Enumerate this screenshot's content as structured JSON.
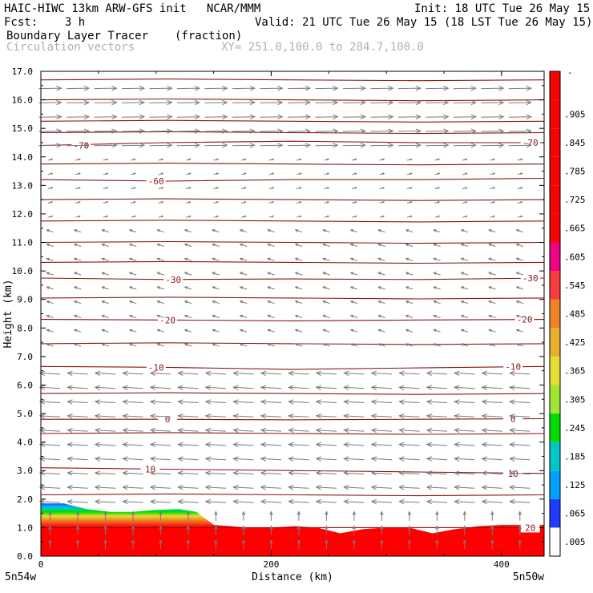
{
  "header": {
    "line1_left": "HAIC-HIWC 13km ARW-GFS init   NCAR/MMM",
    "line1_right": "Init: 18 UTC Tue 26 May 15",
    "line2_left": "Fcst:    3 h",
    "line2_right": "Valid: 21 UTC Tue 26 May 15 (18 LST Tue 26 May 15)",
    "line3_left": "Boundary Layer Tracer",
    "line3_mid": "(fraction)",
    "line4_left": "Circulation vectors",
    "line4_mid": "XY= 251.0,100.0 to 284.7,100.0"
  },
  "chart_data": {
    "type": "heatmap",
    "xlabel": "Distance (km)",
    "ylabel": "Height (km)",
    "xlim": [
      0,
      437
    ],
    "ylim": [
      0,
      17
    ],
    "x_ticks": [
      0,
      200,
      400
    ],
    "x_tick_labels": [
      "0",
      "200",
      "400"
    ],
    "y_ticks": [
      0,
      1,
      2,
      3,
      4,
      5,
      6,
      7,
      8,
      9,
      10,
      11,
      12,
      13,
      14,
      15,
      16,
      17
    ],
    "y_tick_labels": [
      "0.0",
      "1.0",
      "2.0",
      "3.0",
      "4.0",
      "5.0",
      "6.0",
      "7.0",
      "8.0",
      "9.0",
      "10.0",
      "11.0",
      "12.0",
      "13.0",
      "14.0",
      "15.0",
      "16.0",
      "17.0"
    ],
    "x_end_labels": {
      "left": "5n54w",
      "right": "5n50w"
    },
    "colorbar": {
      "levels": [
        0.005,
        0.065,
        0.125,
        0.185,
        0.245,
        0.305,
        0.365,
        0.425,
        0.485,
        0.545,
        0.605,
        0.665,
        0.725,
        0.785,
        0.845,
        0.905
      ],
      "labels": [
        ".005",
        ".065",
        ".125",
        ".185",
        ".245",
        ".305",
        ".365",
        ".425",
        ".485",
        ".545",
        ".605",
        ".665",
        ".725",
        ".785",
        ".845",
        ".905"
      ],
      "colors": [
        "#ffffff",
        "#1e3cff",
        "#00a0ff",
        "#00c8c8",
        "#00dc00",
        "#a0e632",
        "#e6dc32",
        "#e6af2d",
        "#f08228",
        "#fa3c3c",
        "#f00082",
        "#ff0000",
        "#ff0000",
        "#ff0000",
        "#ff0000",
        "#ff0000",
        "#ff0000"
      ],
      "top_label": "-"
    },
    "tracer_top_km": [
      {
        "x": 0,
        "h": 1.85
      },
      {
        "x": 20,
        "h": 1.85
      },
      {
        "x": 40,
        "h": 1.65
      },
      {
        "x": 60,
        "h": 1.55
      },
      {
        "x": 80,
        "h": 1.55
      },
      {
        "x": 100,
        "h": 1.62
      },
      {
        "x": 120,
        "h": 1.65
      },
      {
        "x": 135,
        "h": 1.55
      },
      {
        "x": 150,
        "h": 1.1
      },
      {
        "x": 165,
        "h": 1.05
      },
      {
        "x": 180,
        "h": 1.0
      },
      {
        "x": 200,
        "h": 1.0
      },
      {
        "x": 220,
        "h": 1.05
      },
      {
        "x": 240,
        "h": 1.0
      },
      {
        "x": 260,
        "h": 0.8
      },
      {
        "x": 280,
        "h": 0.95
      },
      {
        "x": 300,
        "h": 1.0
      },
      {
        "x": 320,
        "h": 1.0
      },
      {
        "x": 340,
        "h": 0.8
      },
      {
        "x": 360,
        "h": 0.95
      },
      {
        "x": 380,
        "h": 1.05
      },
      {
        "x": 400,
        "h": 1.1
      },
      {
        "x": 437,
        "h": 1.1
      }
    ],
    "temperature_contours": [
      {
        "value": 20,
        "label": "20",
        "heights": [
          1.0,
          1.0,
          1.0,
          1.0,
          1.0
        ],
        "label_x": [
          425
        ]
      },
      {
        "value": 10,
        "label": "10",
        "heights": [
          3.1,
          3.05,
          3.0,
          2.95,
          2.9
        ],
        "label_x": [
          95,
          410
        ]
      },
      {
        "value": 0,
        "label": "0",
        "heights": [
          4.8,
          4.8,
          4.78,
          4.8,
          4.82
        ],
        "label_x": [
          110,
          410
        ]
      },
      {
        "value": -10,
        "label": "-10",
        "heights": [
          6.65,
          6.62,
          6.55,
          6.6,
          6.65
        ],
        "label_x": [
          100,
          410
        ]
      },
      {
        "value": -20,
        "label": "-20",
        "heights": [
          8.3,
          8.28,
          8.25,
          8.28,
          8.3
        ],
        "label_x": [
          110,
          420
        ]
      },
      {
        "value": -30,
        "label": "-30",
        "heights": [
          9.75,
          9.7,
          9.72,
          9.7,
          9.75
        ],
        "label_x": [
          115,
          425
        ]
      },
      {
        "value": -60,
        "label": "-60",
        "heights": [
          13.2,
          13.15,
          13.2,
          13.2,
          13.25
        ],
        "label_x": [
          100
        ]
      },
      {
        "value": -70,
        "label": "-70",
        "heights": [
          14.4,
          14.5,
          14.55,
          14.5,
          14.5
        ],
        "label_x": [
          35,
          425
        ]
      }
    ],
    "extra_contour_heights_km": [
      2.15,
      4.3,
      5.7,
      7.45,
      9.05,
      10.3,
      11.0,
      11.75,
      12.5,
      13.75,
      14.85,
      15.25,
      16.0,
      16.7
    ],
    "wind_layers": [
      {
        "h_min": 0.2,
        "h_max": 1.6,
        "u": 0.0,
        "w": 0.4
      },
      {
        "h_min": 1.8,
        "h_max": 6.8,
        "u": -0.9,
        "w": 0.05
      },
      {
        "h_min": 7.0,
        "h_max": 11.5,
        "u": -0.3,
        "w": 0.1
      },
      {
        "h_min": 11.8,
        "h_max": 13.9,
        "u": 0.2,
        "w": 0.05
      },
      {
        "h_min": 14.0,
        "h_max": 16.8,
        "u": 1.0,
        "w": 0.02
      }
    ]
  }
}
